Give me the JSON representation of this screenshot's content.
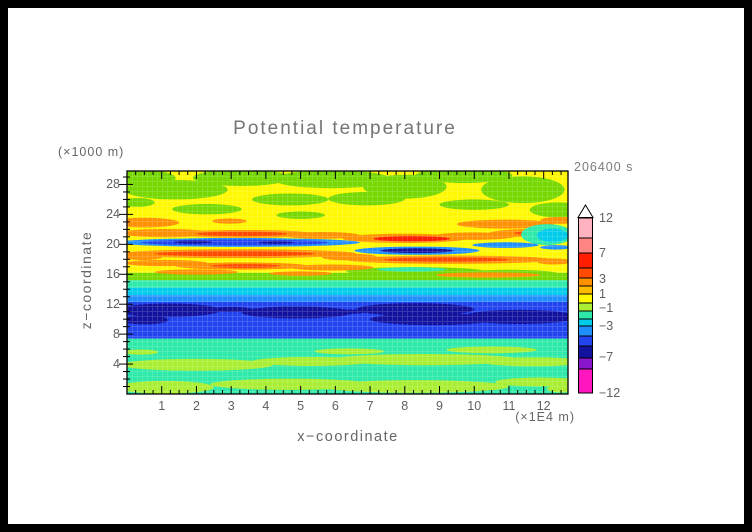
{
  "chart_data": {
    "type": "heatmap",
    "title": "Potential temperature",
    "time_stamp": "206400 s",
    "xlabel": "x−coordinate",
    "ylabel": "z−coordinate",
    "x_unit": "(×1E4 m)",
    "y_unit": "(×1000 m)",
    "xlim": [
      0,
      12.7
    ],
    "ylim": [
      0,
      29.8
    ],
    "x_ticks": [
      1,
      2,
      3,
      4,
      5,
      6,
      7,
      8,
      9,
      10,
      11,
      12
    ],
    "y_ticks": [
      4,
      8,
      12,
      16,
      20,
      24,
      28
    ],
    "x_minor_step": 0.25,
    "y_minor_step": 1,
    "grid": false,
    "legend_position": "right",
    "palette": {
      "yellow": "#FFF800",
      "green": "#76D800",
      "chartreuse": "#A9EE32",
      "turquoise": "#2EE9A9",
      "cyan": "#00CBEA",
      "azure": "#1F8FFF",
      "blue": "#2244EF",
      "navy": "#12129F",
      "orange": "#FF9100",
      "redorange": "#FF4A00",
      "red": "#FF1D00",
      "lightpink": "#FFB3C0",
      "salmon": "#FF8484",
      "amber": "#FFBB00",
      "purple": "#8816CB",
      "magenta": "#FF16BE",
      "frame": "#000000"
    },
    "colorbar": {
      "labeled_levels": [
        12,
        7,
        3,
        1,
        -1,
        -3,
        -7,
        -12
      ],
      "labels": [
        {
          "text": "12",
          "offset": 0
        },
        {
          "text": "7",
          "offset": 35
        },
        {
          "text": "3",
          "offset": 61
        },
        {
          "text": "1",
          "offset": 76
        },
        {
          "text": "−1",
          "offset": 90
        },
        {
          "text": "−3",
          "offset": 108
        },
        {
          "text": "−7",
          "offset": 139
        },
        {
          "text": "−12",
          "offset": 175
        }
      ],
      "segments": [
        [
          "lightpink",
          20
        ],
        [
          "salmon",
          15
        ],
        [
          "red",
          15
        ],
        [
          "redorange",
          10
        ],
        [
          "orange",
          8
        ],
        [
          "amber",
          8
        ],
        [
          "yellow",
          9
        ],
        [
          "chartreuse",
          8
        ],
        [
          "turquoise",
          8
        ],
        [
          "cyan",
          7
        ],
        [
          "azure",
          10
        ],
        [
          "blue",
          10
        ],
        [
          "navy",
          12
        ],
        [
          "purple",
          11
        ],
        [
          "magenta",
          24
        ]
      ]
    },
    "field": {
      "bands": [
        {
          "z0": 16.2,
          "z1": 29.8,
          "c": "yellow"
        },
        {
          "z0": 15.2,
          "z1": 16.2,
          "c": "green"
        },
        {
          "z0": 14.2,
          "z1": 15.2,
          "c": "turquoise"
        },
        {
          "z0": 13.2,
          "z1": 14.2,
          "c": "cyan"
        },
        {
          "z0": 12.3,
          "z1": 13.2,
          "c": "azure"
        },
        {
          "z0": 7.4,
          "z1": 12.3,
          "c": "blue"
        },
        {
          "z0": 0,
          "z1": 7.4,
          "c": "turquoise"
        }
      ],
      "blobs": [
        [
          0.5,
          28.9,
          0.9,
          1.0,
          "green"
        ],
        [
          1.4,
          27.3,
          1.5,
          1.3,
          "green"
        ],
        [
          3.3,
          28.9,
          1.4,
          1.1,
          "green"
        ],
        [
          5.9,
          28.7,
          1.7,
          1.2,
          "green"
        ],
        [
          8.0,
          27.7,
          1.2,
          1.6,
          "green"
        ],
        [
          9.7,
          29.2,
          1.4,
          1.0,
          "green"
        ],
        [
          11.4,
          27.3,
          1.2,
          1.8,
          "green"
        ],
        [
          6.9,
          26.1,
          1.1,
          0.9,
          "green"
        ],
        [
          2.3,
          24.7,
          1.0,
          0.7,
          "green"
        ],
        [
          4.7,
          26.0,
          1.1,
          0.8,
          "green"
        ],
        [
          10.0,
          25.3,
          1.0,
          0.7,
          "green"
        ],
        [
          12.4,
          24.6,
          0.8,
          1.0,
          "green"
        ],
        [
          5.0,
          23.9,
          0.7,
          0.5,
          "green"
        ],
        [
          0.3,
          25.6,
          0.5,
          0.6,
          "green"
        ],
        [
          0.5,
          22.9,
          1.0,
          0.65,
          "orange"
        ],
        [
          2.95,
          23.1,
          0.5,
          0.35,
          "orange"
        ],
        [
          10.9,
          22.7,
          1.4,
          0.6,
          "orange"
        ],
        [
          12.45,
          23.2,
          0.55,
          0.45,
          "orange"
        ],
        [
          1.1,
          21.5,
          1.35,
          0.55,
          "orange"
        ],
        [
          3.4,
          21.4,
          2.0,
          0.52,
          "orange"
        ],
        [
          5.6,
          21.2,
          1.1,
          0.45,
          "orange"
        ],
        [
          8.0,
          20.8,
          1.8,
          0.62,
          "orange"
        ],
        [
          10.0,
          21.1,
          1.2,
          0.5,
          "orange"
        ],
        [
          11.7,
          21.5,
          1.25,
          0.55,
          "orange"
        ],
        [
          3.3,
          21.4,
          1.3,
          0.3,
          "redorange"
        ],
        [
          11.8,
          21.5,
          0.65,
          0.28,
          "redorange"
        ],
        [
          8.2,
          20.75,
          1.1,
          0.36,
          "red"
        ],
        [
          12.1,
          21.3,
          0.75,
          1.4,
          "turquoise"
        ],
        [
          12.25,
          21.2,
          0.45,
          0.9,
          "cyan"
        ],
        [
          3.2,
          20.25,
          3.5,
          0.6,
          "azure"
        ],
        [
          3.1,
          20.25,
          2.7,
          0.4,
          "blue"
        ],
        [
          1.9,
          20.3,
          0.55,
          0.2,
          "navy"
        ],
        [
          4.3,
          20.25,
          0.5,
          0.18,
          "navy"
        ],
        [
          8.35,
          19.15,
          1.8,
          0.55,
          "azure"
        ],
        [
          8.35,
          19.15,
          1.05,
          0.32,
          "navy"
        ],
        [
          10.9,
          19.9,
          0.95,
          0.38,
          "azure"
        ],
        [
          12.35,
          19.6,
          0.45,
          0.3,
          "azure"
        ],
        [
          3.2,
          18.75,
          3.4,
          0.6,
          "orange"
        ],
        [
          0.45,
          18.4,
          0.6,
          0.5,
          "orange"
        ],
        [
          6.4,
          18.3,
          0.8,
          0.45,
          "orange"
        ],
        [
          9.3,
          17.95,
          3.0,
          0.55,
          "orange"
        ],
        [
          12.3,
          17.7,
          0.5,
          0.4,
          "orange"
        ],
        [
          3.1,
          18.75,
          2.3,
          0.35,
          "redorange"
        ],
        [
          9.2,
          17.95,
          1.8,
          0.3,
          "redorange"
        ],
        [
          8.3,
          16.4,
          2.0,
          0.55,
          "green"
        ],
        [
          11.0,
          16.1,
          1.4,
          0.5,
          "green"
        ],
        [
          8.2,
          16.65,
          1.0,
          0.3,
          "turquoise"
        ],
        [
          1.1,
          17.5,
          1.2,
          0.42,
          "orange"
        ],
        [
          3.3,
          17.1,
          1.9,
          0.48,
          "orange"
        ],
        [
          5.9,
          16.9,
          1.2,
          0.4,
          "orange"
        ],
        [
          2.0,
          16.3,
          1.2,
          0.35,
          "orange"
        ],
        [
          5.0,
          16.1,
          0.9,
          0.3,
          "orange"
        ],
        [
          10.4,
          15.9,
          1.5,
          0.35,
          "orange"
        ],
        [
          3.4,
          17.1,
          1.0,
          0.26,
          "redorange"
        ],
        [
          2.0,
          3.9,
          2.2,
          0.8,
          "chartreuse"
        ],
        [
          5.3,
          4.35,
          1.7,
          0.6,
          "chartreuse"
        ],
        [
          8.6,
          4.6,
          2.7,
          0.75,
          "chartreuse"
        ],
        [
          11.7,
          4.3,
          1.5,
          0.6,
          "chartreuse"
        ],
        [
          1.1,
          0.9,
          1.4,
          0.85,
          "chartreuse"
        ],
        [
          4.7,
          1.3,
          2.3,
          0.75,
          "chartreuse"
        ],
        [
          8.3,
          1.0,
          2.7,
          0.85,
          "chartreuse"
        ],
        [
          11.9,
          1.6,
          1.3,
          0.6,
          "chartreuse"
        ],
        [
          10.5,
          5.9,
          1.3,
          0.45,
          "chartreuse"
        ],
        [
          6.4,
          5.7,
          1.0,
          0.4,
          "chartreuse"
        ],
        [
          0.4,
          5.6,
          0.5,
          0.35,
          "chartreuse"
        ],
        [
          12.5,
          0.7,
          0.4,
          0.5,
          "chartreuse"
        ],
        [
          1.2,
          11.2,
          1.5,
          0.9,
          "navy"
        ],
        [
          0.5,
          9.9,
          0.7,
          0.6,
          "navy"
        ],
        [
          3.0,
          11.3,
          0.6,
          0.35,
          "navy"
        ],
        [
          4.9,
          10.9,
          1.6,
          0.8,
          "navy"
        ],
        [
          8.3,
          11.3,
          1.7,
          0.85,
          "navy"
        ],
        [
          8.8,
          10.0,
          1.8,
          0.8,
          "navy"
        ],
        [
          11.3,
          10.3,
          1.65,
          0.95,
          "navy"
        ],
        [
          6.4,
          11.0,
          0.5,
          0.3,
          "navy"
        ]
      ]
    }
  }
}
